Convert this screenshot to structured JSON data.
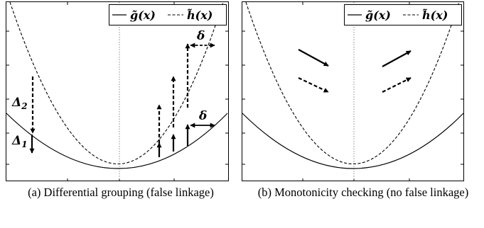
{
  "panels": [
    {
      "id": "a",
      "caption": "(a) Differential grouping (false linkage)",
      "legend": {
        "solid": "g̃(x)",
        "dashed": "h̃(x)"
      },
      "labels": {
        "delta_top": "δ",
        "delta_mid": "δ",
        "Delta2": "Δ",
        "Delta2_sub": "2",
        "Delta1": "Δ",
        "Delta1_sub": "1"
      }
    },
    {
      "id": "b",
      "caption": "(b) Monotonicity checking (no false linkage)",
      "legend": {
        "solid": "g̃(x)",
        "dashed": "h̃(x)"
      }
    }
  ],
  "colors": {
    "line": "#000000",
    "frame": "#000000",
    "center": "#888888"
  }
}
